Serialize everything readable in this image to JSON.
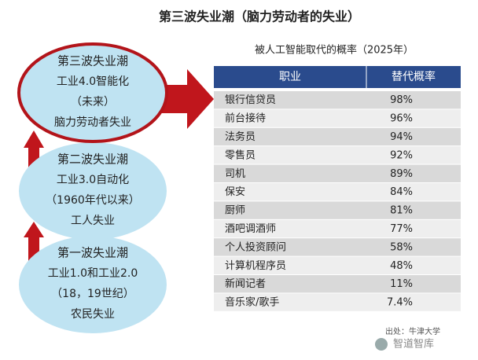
{
  "header": {
    "title": "第三波失业潮（脑力劳动者的失业）"
  },
  "waves": [
    {
      "lines": [
        "第三波失业潮",
        "工业4.0智能化",
        "（未来）",
        "脑力劳动者失业"
      ]
    },
    {
      "lines": [
        "第二波失业潮",
        "工业3.0自动化",
        "（1960年代以来）",
        "工人失业"
      ]
    },
    {
      "lines": [
        "第一波失业潮",
        "工业1.0和工业2.0",
        "（18，19世纪）",
        "农民失业"
      ]
    }
  ],
  "table": {
    "title": "被人工智能取代的概率（2025年）",
    "columns": [
      "职业",
      "替代概率"
    ],
    "rows": [
      [
        "银行信贷员",
        "98%"
      ],
      [
        "前台接待",
        "96%"
      ],
      [
        "法务员",
        "94%"
      ],
      [
        "零售员",
        "92%"
      ],
      [
        "司机",
        "89%"
      ],
      [
        "保安",
        "84%"
      ],
      [
        "厨师",
        "81%"
      ],
      [
        "酒吧调酒师",
        "77%"
      ],
      [
        "个人投资顾问",
        "58%"
      ],
      [
        "计算机程序员",
        "48%"
      ],
      [
        "新闻记者",
        "11%"
      ],
      [
        "音乐家/歌手",
        "7.4%"
      ]
    ]
  },
  "source": "出处：牛津大学",
  "watermark": "智道智库"
}
